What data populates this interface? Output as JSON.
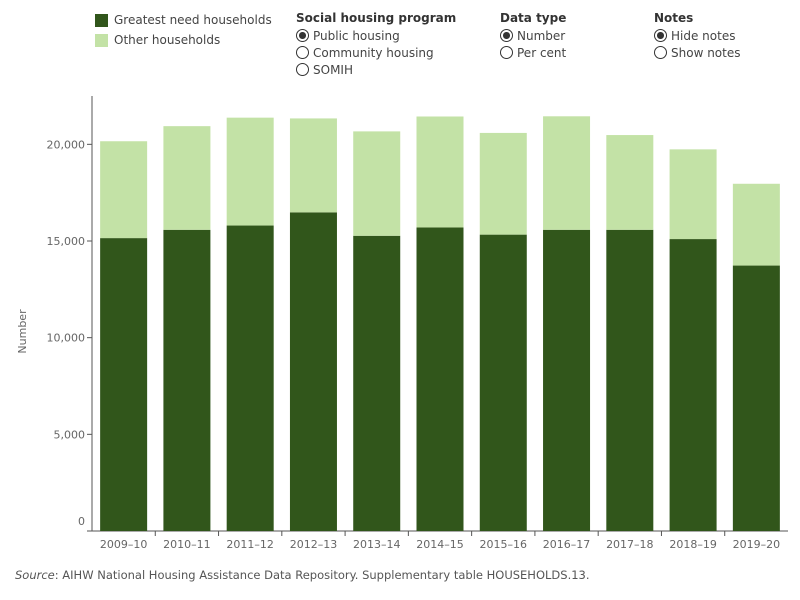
{
  "legend": {
    "items": [
      {
        "label": "Greatest need households",
        "color": "#31561b"
      },
      {
        "label": "Other households",
        "color": "#c3e2a6"
      }
    ]
  },
  "filters": {
    "program": {
      "title": "Social housing program",
      "options": [
        "Public housing",
        "Community housing",
        "SOMIH"
      ],
      "selected": 0
    },
    "datatype": {
      "title": "Data type",
      "options": [
        "Number",
        "Per cent"
      ],
      "selected": 0
    },
    "notes": {
      "title": "Notes",
      "options": [
        "Hide notes",
        "Show notes"
      ],
      "selected": 0
    }
  },
  "chart_data": {
    "type": "bar",
    "stacked": true,
    "categories": [
      "2009–10",
      "2010–11",
      "2011–12",
      "2012–13",
      "2013–14",
      "2014–15",
      "2015–16",
      "2016–17",
      "2017–18",
      "2018–19",
      "2019–20"
    ],
    "series": [
      {
        "name": "Greatest need households",
        "color": "#31561b",
        "values": [
          15150,
          15580,
          15800,
          16480,
          15270,
          15700,
          15330,
          15580,
          15580,
          15100,
          13730
        ]
      },
      {
        "name": "Other households",
        "color": "#c3e2a6",
        "values": [
          5010,
          5360,
          5580,
          4860,
          5400,
          5740,
          5260,
          5870,
          4900,
          4640,
          4230
        ]
      }
    ],
    "ylabel": "Number",
    "yticks": [
      0,
      5000,
      10000,
      15000,
      20000
    ],
    "ytick_labels": [
      "0",
      "5,000",
      "10,000",
      "15,000",
      "20,000"
    ],
    "ylim": [
      0,
      22500
    ],
    "grid": false
  },
  "source": {
    "label": "Source",
    "text": ": AIHW National Housing Assistance Data Repository. Supplementary table HOUSEHOLDS.13."
  }
}
